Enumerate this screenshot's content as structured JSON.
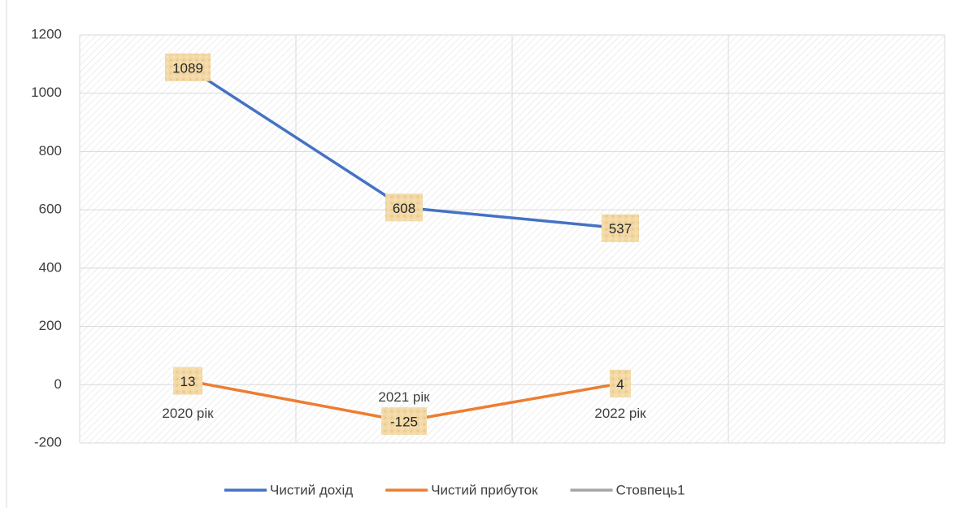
{
  "chart_data": {
    "type": "line",
    "categories": [
      "2020 рік",
      "2021 рік",
      "2022 рік",
      null
    ],
    "series": [
      {
        "name": "Чистий дохід",
        "color": "#4472c4",
        "values": [
          1089,
          608,
          537,
          null
        ]
      },
      {
        "name": "Чистий прибуток",
        "color": "#ed7d31",
        "values": [
          13,
          -125,
          4,
          null
        ]
      },
      {
        "name": "Стовпець1",
        "color": "#a5a5a5",
        "values": [
          null,
          null,
          null,
          null
        ]
      }
    ],
    "ylim": [
      -200,
      1200
    ],
    "yticks": [
      -200,
      0,
      200,
      400,
      600,
      800,
      1000,
      1200
    ],
    "grid": true,
    "legend": "bottom"
  }
}
